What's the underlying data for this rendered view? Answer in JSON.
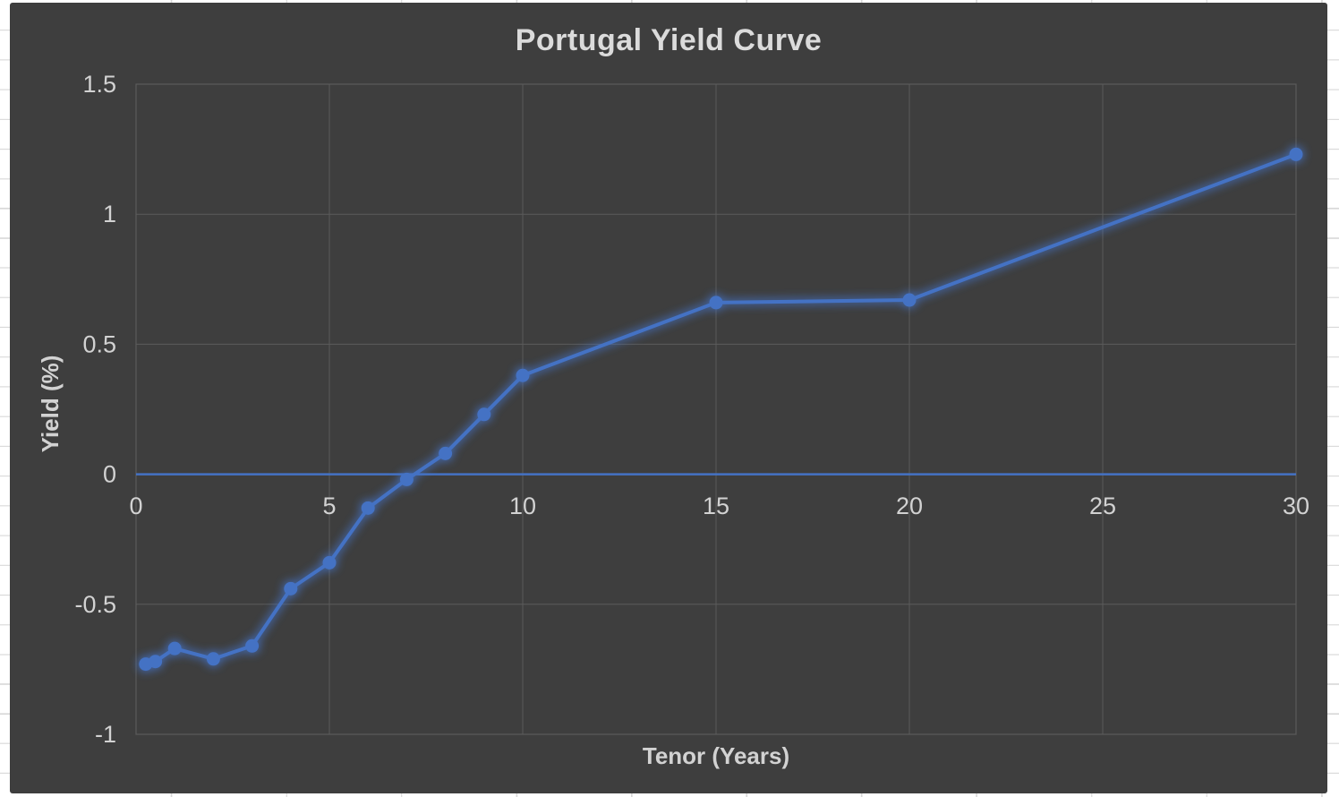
{
  "chart_data": {
    "type": "line",
    "title": "Portugal Yield Curve",
    "xlabel": "Tenor (Years)",
    "ylabel": "Yield (%)",
    "x": [
      0.25,
      0.5,
      1,
      2,
      3,
      4,
      5,
      6,
      7,
      8,
      9,
      10,
      15,
      20,
      30
    ],
    "y": [
      -0.73,
      -0.72,
      -0.67,
      -0.71,
      -0.66,
      -0.44,
      -0.34,
      -0.13,
      -0.02,
      0.08,
      0.23,
      0.38,
      0.66,
      0.67,
      1.23
    ],
    "xlim": [
      0,
      30
    ],
    "ylim": [
      -1,
      1.5
    ],
    "xticks": {
      "values": [
        0,
        5,
        10,
        15,
        20,
        25,
        30
      ],
      "labels": [
        "0",
        "5",
        "10",
        "15",
        "20",
        "25",
        "30"
      ]
    },
    "yticks": {
      "values": [
        1.5,
        1,
        0.5,
        0,
        -0.5,
        -1
      ],
      "labels": [
        "1.5",
        "1",
        "0.5",
        "0",
        "-0.5",
        "-1"
      ]
    },
    "grid": true,
    "legend": false,
    "zero_line": true,
    "marker": "circle",
    "colors": {
      "line": "#4472C4",
      "chart_background": "#3E3E3E",
      "gridline": "#5B5B5B",
      "tick_text": "#D2D2D2",
      "title_text": "#DBDBDB",
      "sheet_gridline": "#D8D8D8"
    }
  }
}
